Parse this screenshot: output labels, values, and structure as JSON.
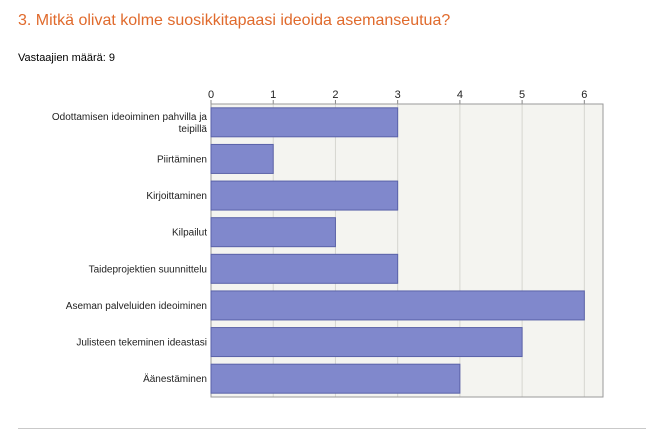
{
  "question": {
    "title": "3. Mitkä olivat kolme suosikkitapaasi ideoida asemanseutua?",
    "respondents": "Vastaajien määrä: 9"
  },
  "colors": {
    "title": "#e06a2c",
    "bar_fill": "#8088cc",
    "bar_stroke": "#5a62a8",
    "plot_bg": "#f4f4f0"
  },
  "chart_data": {
    "type": "bar",
    "orientation": "horizontal",
    "categories": [
      "Odottamisen ideoiminen pahvilla ja teipillä",
      "Piirtäminen",
      "Kirjoittaminen",
      "Kilpailut",
      "Taideprojektien suunnittelu",
      "Aseman palveluiden ideoiminen",
      "Julisteen tekeminen ideastasi",
      "Äänestäminen"
    ],
    "values": [
      3,
      1,
      3,
      2,
      3,
      6,
      5,
      4
    ],
    "xlim": [
      0,
      6.3
    ],
    "ticks": [
      0,
      1,
      2,
      3,
      4,
      5,
      6
    ],
    "tick_position": "top",
    "grid": true,
    "legend": "none"
  }
}
